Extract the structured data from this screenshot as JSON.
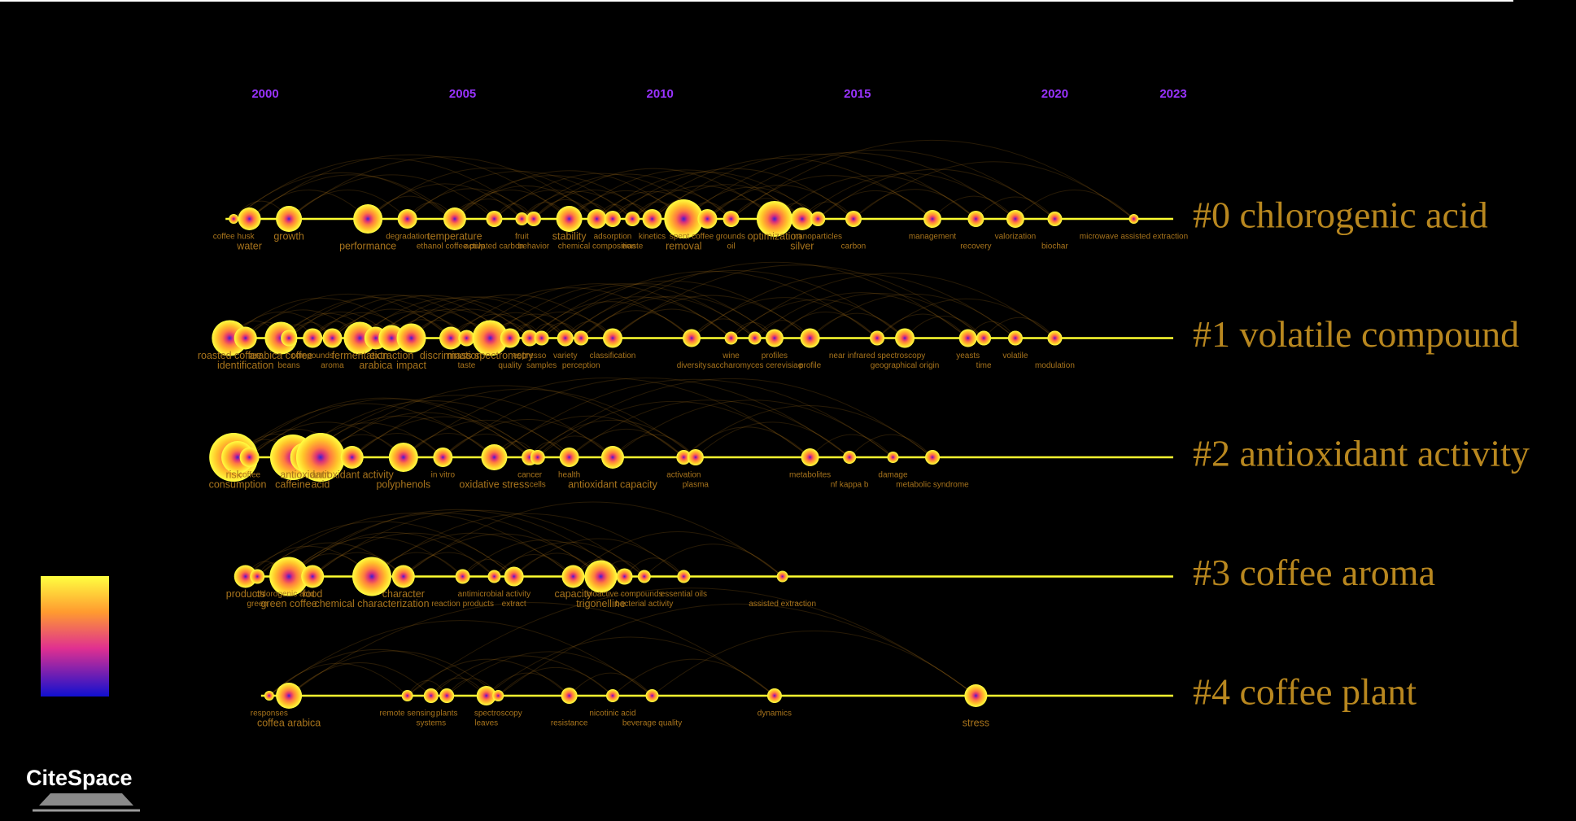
{
  "chart_data": {
    "type": "timeline",
    "xlim": [
      2000,
      2023
    ],
    "xticks": [
      2000,
      2005,
      2010,
      2015,
      2020,
      2023
    ],
    "logo": "CiteSpace",
    "clusters": [
      {
        "name": "#0 chlorogenic acid",
        "keywords": [
          {
            "label": "coffee husk",
            "year": 1999.2,
            "size": 6
          },
          {
            "label": "water",
            "year": 1999.6,
            "size": 14
          },
          {
            "label": "growth",
            "year": 2000.6,
            "size": 16
          },
          {
            "label": "performance",
            "year": 2002.6,
            "size": 18
          },
          {
            "label": "degradation",
            "year": 2003.6,
            "size": 12
          },
          {
            "label": "ethanol coffee pulp",
            "year": 2004.7,
            "size": 8
          },
          {
            "label": "temperature",
            "year": 2004.8,
            "size": 14
          },
          {
            "label": "activated carbon",
            "year": 2005.8,
            "size": 10
          },
          {
            "label": "fruit",
            "year": 2006.5,
            "size": 8
          },
          {
            "label": "behavior",
            "year": 2006.8,
            "size": 9
          },
          {
            "label": "stability",
            "year": 2007.7,
            "size": 16
          },
          {
            "label": "chemical composition",
            "year": 2008.4,
            "size": 12
          },
          {
            "label": "adsorption",
            "year": 2008.8,
            "size": 10
          },
          {
            "label": "waste",
            "year": 2009.3,
            "size": 9
          },
          {
            "label": "kinetics",
            "year": 2009.8,
            "size": 12
          },
          {
            "label": "removal",
            "year": 2010.6,
            "size": 24
          },
          {
            "label": "spent coffee grounds",
            "year": 2011.2,
            "size": 12
          },
          {
            "label": "oil",
            "year": 2011.8,
            "size": 10
          },
          {
            "label": "optimization",
            "year": 2012.9,
            "size": 22
          },
          {
            "label": "silver",
            "year": 2013.6,
            "size": 14
          },
          {
            "label": "nanoparticles",
            "year": 2014.0,
            "size": 9
          },
          {
            "label": "carbon",
            "year": 2014.9,
            "size": 10
          },
          {
            "label": "management",
            "year": 2016.9,
            "size": 11
          },
          {
            "label": "recovery",
            "year": 2018.0,
            "size": 10
          },
          {
            "label": "valorization",
            "year": 2019.0,
            "size": 11
          },
          {
            "label": "biochar",
            "year": 2020.0,
            "size": 9
          },
          {
            "label": "microwave assisted extraction",
            "year": 2022.0,
            "size": 6
          }
        ]
      },
      {
        "name": "#1 volatile compound",
        "keywords": [
          {
            "label": "roasted coffee",
            "year": 1999.1,
            "size": 22
          },
          {
            "label": "identification",
            "year": 1999.5,
            "size": 14
          },
          {
            "label": "arabica coffee",
            "year": 2000.4,
            "size": 20
          },
          {
            "label": "beans",
            "year": 2000.6,
            "size": 10
          },
          {
            "label": "compounds",
            "year": 2001.2,
            "size": 12
          },
          {
            "label": "aroma",
            "year": 2001.7,
            "size": 12
          },
          {
            "label": "fermentation",
            "year": 2002.4,
            "size": 20
          },
          {
            "label": "arabica",
            "year": 2002.8,
            "size": 14
          },
          {
            "label": "extraction",
            "year": 2003.2,
            "size": 16
          },
          {
            "label": "impact",
            "year": 2003.7,
            "size": 18
          },
          {
            "label": "discrimination",
            "year": 2004.7,
            "size": 14
          },
          {
            "label": "taste",
            "year": 2005.1,
            "size": 10
          },
          {
            "label": "mass spectrometry",
            "year": 2005.7,
            "size": 22
          },
          {
            "label": "quality",
            "year": 2006.2,
            "size": 12
          },
          {
            "label": "espresso",
            "year": 2006.7,
            "size": 10
          },
          {
            "label": "samples",
            "year": 2007.0,
            "size": 9
          },
          {
            "label": "variety",
            "year": 2007.6,
            "size": 10
          },
          {
            "label": "perception",
            "year": 2008.0,
            "size": 9
          },
          {
            "label": "classification",
            "year": 2008.8,
            "size": 12
          },
          {
            "label": "diversity",
            "year": 2010.8,
            "size": 11
          },
          {
            "label": "wine",
            "year": 2011.8,
            "size": 8
          },
          {
            "label": "saccharomyces cerevisiae",
            "year": 2012.4,
            "size": 8
          },
          {
            "label": "profiles",
            "year": 2012.9,
            "size": 11
          },
          {
            "label": "profile",
            "year": 2013.8,
            "size": 12
          },
          {
            "label": "near infrared spectroscopy",
            "year": 2015.5,
            "size": 9
          },
          {
            "label": "geographical origin",
            "year": 2016.2,
            "size": 12
          },
          {
            "label": "yeasts",
            "year": 2017.8,
            "size": 11
          },
          {
            "label": "time",
            "year": 2018.2,
            "size": 9
          },
          {
            "label": "volatile",
            "year": 2019.0,
            "size": 9
          },
          {
            "label": "modulation",
            "year": 2020.0,
            "size": 9
          }
        ]
      },
      {
        "name": "#2 antioxidant activity",
        "keywords": [
          {
            "label": "risk",
            "year": 1999.2,
            "size": 30
          },
          {
            "label": "consumption",
            "year": 1999.3,
            "size": 20
          },
          {
            "label": "coffee",
            "year": 1999.6,
            "size": 12
          },
          {
            "label": "caffeine",
            "year": 2000.7,
            "size": 28
          },
          {
            "label": "antioxidant",
            "year": 2001.0,
            "size": 18
          },
          {
            "label": "acid",
            "year": 2001.4,
            "size": 30
          },
          {
            "label": "antioxidant activity",
            "year": 2002.2,
            "size": 14
          },
          {
            "label": "polyphenols",
            "year": 2003.5,
            "size": 18
          },
          {
            "label": "in vitro",
            "year": 2004.5,
            "size": 12
          },
          {
            "label": "oxidative stress",
            "year": 2005.8,
            "size": 16
          },
          {
            "label": "cancer",
            "year": 2006.7,
            "size": 10
          },
          {
            "label": "cells",
            "year": 2006.9,
            "size": 9
          },
          {
            "label": "health",
            "year": 2007.7,
            "size": 12
          },
          {
            "label": "antioxidant capacity",
            "year": 2008.8,
            "size": 14
          },
          {
            "label": "activation",
            "year": 2010.6,
            "size": 9
          },
          {
            "label": "plasma",
            "year": 2010.9,
            "size": 10
          },
          {
            "label": "metabolites",
            "year": 2013.8,
            "size": 11
          },
          {
            "label": "nf kappa b",
            "year": 2014.8,
            "size": 8
          },
          {
            "label": "damage",
            "year": 2015.9,
            "size": 7
          },
          {
            "label": "metabolic syndrome",
            "year": 2016.9,
            "size": 9
          }
        ]
      },
      {
        "name": "#3 coffee aroma",
        "keywords": [
          {
            "label": "products",
            "year": 1999.5,
            "size": 14
          },
          {
            "label": "green",
            "year": 1999.8,
            "size": 9
          },
          {
            "label": "chlorogenic acid",
            "year": 2000.5,
            "size": 12
          },
          {
            "label": "green coffee",
            "year": 2000.6,
            "size": 24
          },
          {
            "label": "food",
            "year": 2001.2,
            "size": 14
          },
          {
            "label": "chemical characterization",
            "year": 2002.7,
            "size": 24
          },
          {
            "label": "character",
            "year": 2003.5,
            "size": 14
          },
          {
            "label": "reaction products",
            "year": 2005.0,
            "size": 9
          },
          {
            "label": "antimicrobial activity",
            "year": 2005.8,
            "size": 8
          },
          {
            "label": "extract",
            "year": 2006.3,
            "size": 12
          },
          {
            "label": "capacity",
            "year": 2007.8,
            "size": 14
          },
          {
            "label": "trigonelline",
            "year": 2008.5,
            "size": 20
          },
          {
            "label": "bioactive compounds",
            "year": 2009.1,
            "size": 10
          },
          {
            "label": "bacterial activity",
            "year": 2009.6,
            "size": 8
          },
          {
            "label": "essential oils",
            "year": 2010.6,
            "size": 8
          },
          {
            "label": "assisted extraction",
            "year": 2013.1,
            "size": 7
          }
        ]
      },
      {
        "name": "#4 coffee plant",
        "keywords": [
          {
            "label": "responses",
            "year": 2000.1,
            "size": 6
          },
          {
            "label": "coffea arabica",
            "year": 2000.6,
            "size": 16
          },
          {
            "label": "remote sensing",
            "year": 2003.6,
            "size": 7
          },
          {
            "label": "systems",
            "year": 2004.2,
            "size": 9
          },
          {
            "label": "plants",
            "year": 2004.6,
            "size": 9
          },
          {
            "label": "leaves",
            "year": 2005.6,
            "size": 12
          },
          {
            "label": "spectroscopy",
            "year": 2005.9,
            "size": 7
          },
          {
            "label": "resistance",
            "year": 2007.7,
            "size": 10
          },
          {
            "label": "nicotinic acid",
            "year": 2008.8,
            "size": 8
          },
          {
            "label": "beverage quality",
            "year": 2009.8,
            "size": 8
          },
          {
            "label": "dynamics",
            "year": 2012.9,
            "size": 9
          },
          {
            "label": "stress",
            "year": 2018.0,
            "size": 14
          }
        ]
      }
    ]
  }
}
